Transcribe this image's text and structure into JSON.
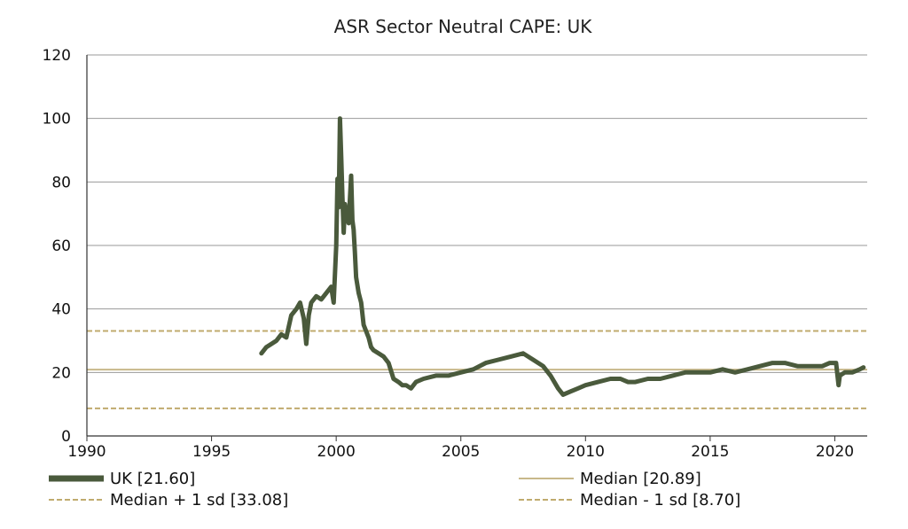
{
  "chart_data": {
    "type": "line",
    "title": "ASR Sector Neutral CAPE: UK",
    "xlabel": "",
    "ylabel": "",
    "xlim": [
      1990,
      2021.3
    ],
    "ylim": [
      0,
      120
    ],
    "x_ticks": [
      "1990",
      "1995",
      "2000",
      "2005",
      "2010",
      "2015",
      "2020"
    ],
    "y_ticks": [
      "0",
      "20",
      "40",
      "60",
      "80",
      "100",
      "120"
    ],
    "grid": true,
    "legend_position": "bottom",
    "colors": {
      "uk": "#4a5a3c",
      "median": "#c8b88a",
      "sd": "#c0ab6e",
      "grid": "#999999",
      "axis": "#333333"
    },
    "series": [
      {
        "name": "UK [21.60]",
        "style": "thick-solid",
        "x": [
          1997.0,
          1997.2,
          1997.4,
          1997.6,
          1997.8,
          1998.0,
          1998.2,
          1998.4,
          1998.55,
          1998.7,
          1998.8,
          1998.9,
          1999.0,
          1999.2,
          1999.4,
          1999.6,
          1999.8,
          1999.9,
          2000.0,
          2000.05,
          2000.1,
          2000.15,
          2000.2,
          2000.25,
          2000.3,
          2000.35,
          2000.4,
          2000.5,
          2000.6,
          2000.65,
          2000.7,
          2000.75,
          2000.8,
          2000.9,
          2001.0,
          2001.1,
          2001.2,
          2001.3,
          2001.4,
          2001.5,
          2001.7,
          2001.9,
          2002.1,
          2002.3,
          2002.5,
          2002.65,
          2002.8,
          2003.0,
          2003.2,
          2003.5,
          2004.0,
          2004.5,
          2005.0,
          2005.5,
          2006.0,
          2006.5,
          2007.0,
          2007.5,
          2007.9,
          2008.3,
          2008.6,
          2008.9,
          2009.1,
          2009.4,
          2009.7,
          2010.0,
          2010.5,
          2011.0,
          2011.4,
          2011.7,
          2012.0,
          2012.5,
          2013.0,
          2013.5,
          2014.0,
          2014.5,
          2015.0,
          2015.5,
          2016.0,
          2016.5,
          2017.0,
          2017.5,
          2018.0,
          2018.5,
          2019.0,
          2019.5,
          2019.8,
          2020.05,
          2020.15,
          2020.2,
          2020.4,
          2020.7,
          2021.0,
          2021.15
        ],
        "y": [
          26,
          28,
          29,
          30,
          32,
          31,
          38,
          40,
          42,
          37,
          29,
          38,
          42,
          44,
          43,
          45,
          47,
          42,
          60,
          81,
          72,
          100,
          88,
          75,
          64,
          73,
          70,
          67,
          82,
          68,
          65,
          58,
          50,
          45,
          42,
          35,
          33,
          31,
          28,
          27,
          26,
          25,
          23,
          18,
          17,
          16,
          16,
          15,
          17,
          18,
          19,
          19,
          20,
          21,
          23,
          24,
          25,
          26,
          24,
          22,
          19,
          15,
          13,
          14,
          15,
          16,
          17,
          18,
          18,
          17,
          17,
          18,
          18,
          19,
          20,
          20,
          20,
          21,
          20,
          21,
          22,
          23,
          23,
          22,
          22,
          22,
          23,
          23,
          16,
          19,
          20,
          20,
          21,
          21.6
        ]
      },
      {
        "name": "Median [20.89]",
        "style": "solid",
        "value": 20.89
      },
      {
        "name": "Median + 1 sd [33.08]",
        "style": "dashed",
        "value": 33.08
      },
      {
        "name": "Median - 1 sd [8.70]",
        "style": "dashed",
        "value": 8.7
      }
    ]
  }
}
